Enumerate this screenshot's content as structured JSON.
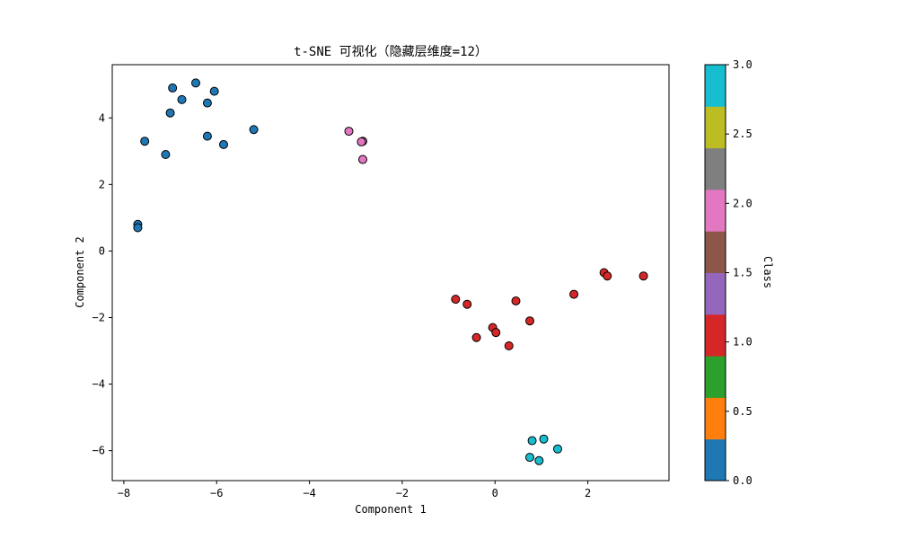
{
  "chart_data": {
    "type": "scatter",
    "title": "t-SNE 可视化（隐藏层维度=12）",
    "xlabel": "Component 1",
    "ylabel": "Component 2",
    "xlim": [
      -8.25,
      3.75
    ],
    "ylim": [
      -6.9,
      5.6
    ],
    "xticks": [
      "−8",
      "−6",
      "−4",
      "−2",
      "0",
      "2"
    ],
    "xtick_values": [
      -8,
      -6,
      -4,
      -2,
      0,
      2
    ],
    "yticks": [
      "−6",
      "−4",
      "−2",
      "0",
      "2",
      "4"
    ],
    "ytick_values": [
      -6,
      -4,
      -2,
      0,
      2,
      4
    ],
    "grid": false,
    "colorbar": {
      "label": "Class",
      "range": [
        0,
        3
      ],
      "ticks": [
        "0.0",
        "0.5",
        "1.0",
        "1.5",
        "2.0",
        "2.5",
        "3.0"
      ],
      "tick_values": [
        0,
        0.5,
        1,
        1.5,
        2,
        2.5,
        3
      ],
      "colors": [
        "#1f77b4",
        "#ff7f0e",
        "#2ca02c",
        "#d62728",
        "#9467bd",
        "#8c564b",
        "#e377c2",
        "#7f7f7f",
        "#bcbd22",
        "#17becf"
      ]
    },
    "class_colors": {
      "0": "#1f77b4",
      "1": "#d62728",
      "2": "#e377c2",
      "3": "#17becf"
    },
    "series": [
      {
        "class": 0,
        "points": [
          [
            -6.45,
            5.05
          ],
          [
            -6.95,
            4.9
          ],
          [
            -6.05,
            4.8
          ],
          [
            -6.75,
            4.55
          ],
          [
            -6.2,
            4.45
          ],
          [
            -7.0,
            4.15
          ],
          [
            -5.2,
            3.65
          ],
          [
            -6.2,
            3.45
          ],
          [
            -7.55,
            3.3
          ],
          [
            -5.85,
            3.2
          ],
          [
            -7.1,
            2.9
          ],
          [
            -7.7,
            0.8
          ],
          [
            -7.7,
            0.7
          ]
        ]
      },
      {
        "class": 1,
        "points": [
          [
            -0.85,
            -1.45
          ],
          [
            -0.6,
            -1.6
          ],
          [
            0.45,
            -1.5
          ],
          [
            1.7,
            -1.3
          ],
          [
            2.35,
            -0.65
          ],
          [
            2.42,
            -0.75
          ],
          [
            3.2,
            -0.75
          ],
          [
            -0.05,
            -2.3
          ],
          [
            0.02,
            -2.45
          ],
          [
            0.75,
            -2.1
          ],
          [
            -0.4,
            -2.6
          ],
          [
            0.3,
            -2.85
          ]
        ]
      },
      {
        "class": 2,
        "points": [
          [
            -3.15,
            3.6
          ],
          [
            -2.85,
            3.3
          ],
          [
            -2.88,
            3.28
          ],
          [
            -2.85,
            2.75
          ]
        ]
      },
      {
        "class": 3,
        "points": [
          [
            0.8,
            -5.7
          ],
          [
            1.05,
            -5.65
          ],
          [
            1.35,
            -5.95
          ],
          [
            0.75,
            -6.2
          ],
          [
            0.95,
            -6.3
          ]
        ]
      }
    ]
  }
}
